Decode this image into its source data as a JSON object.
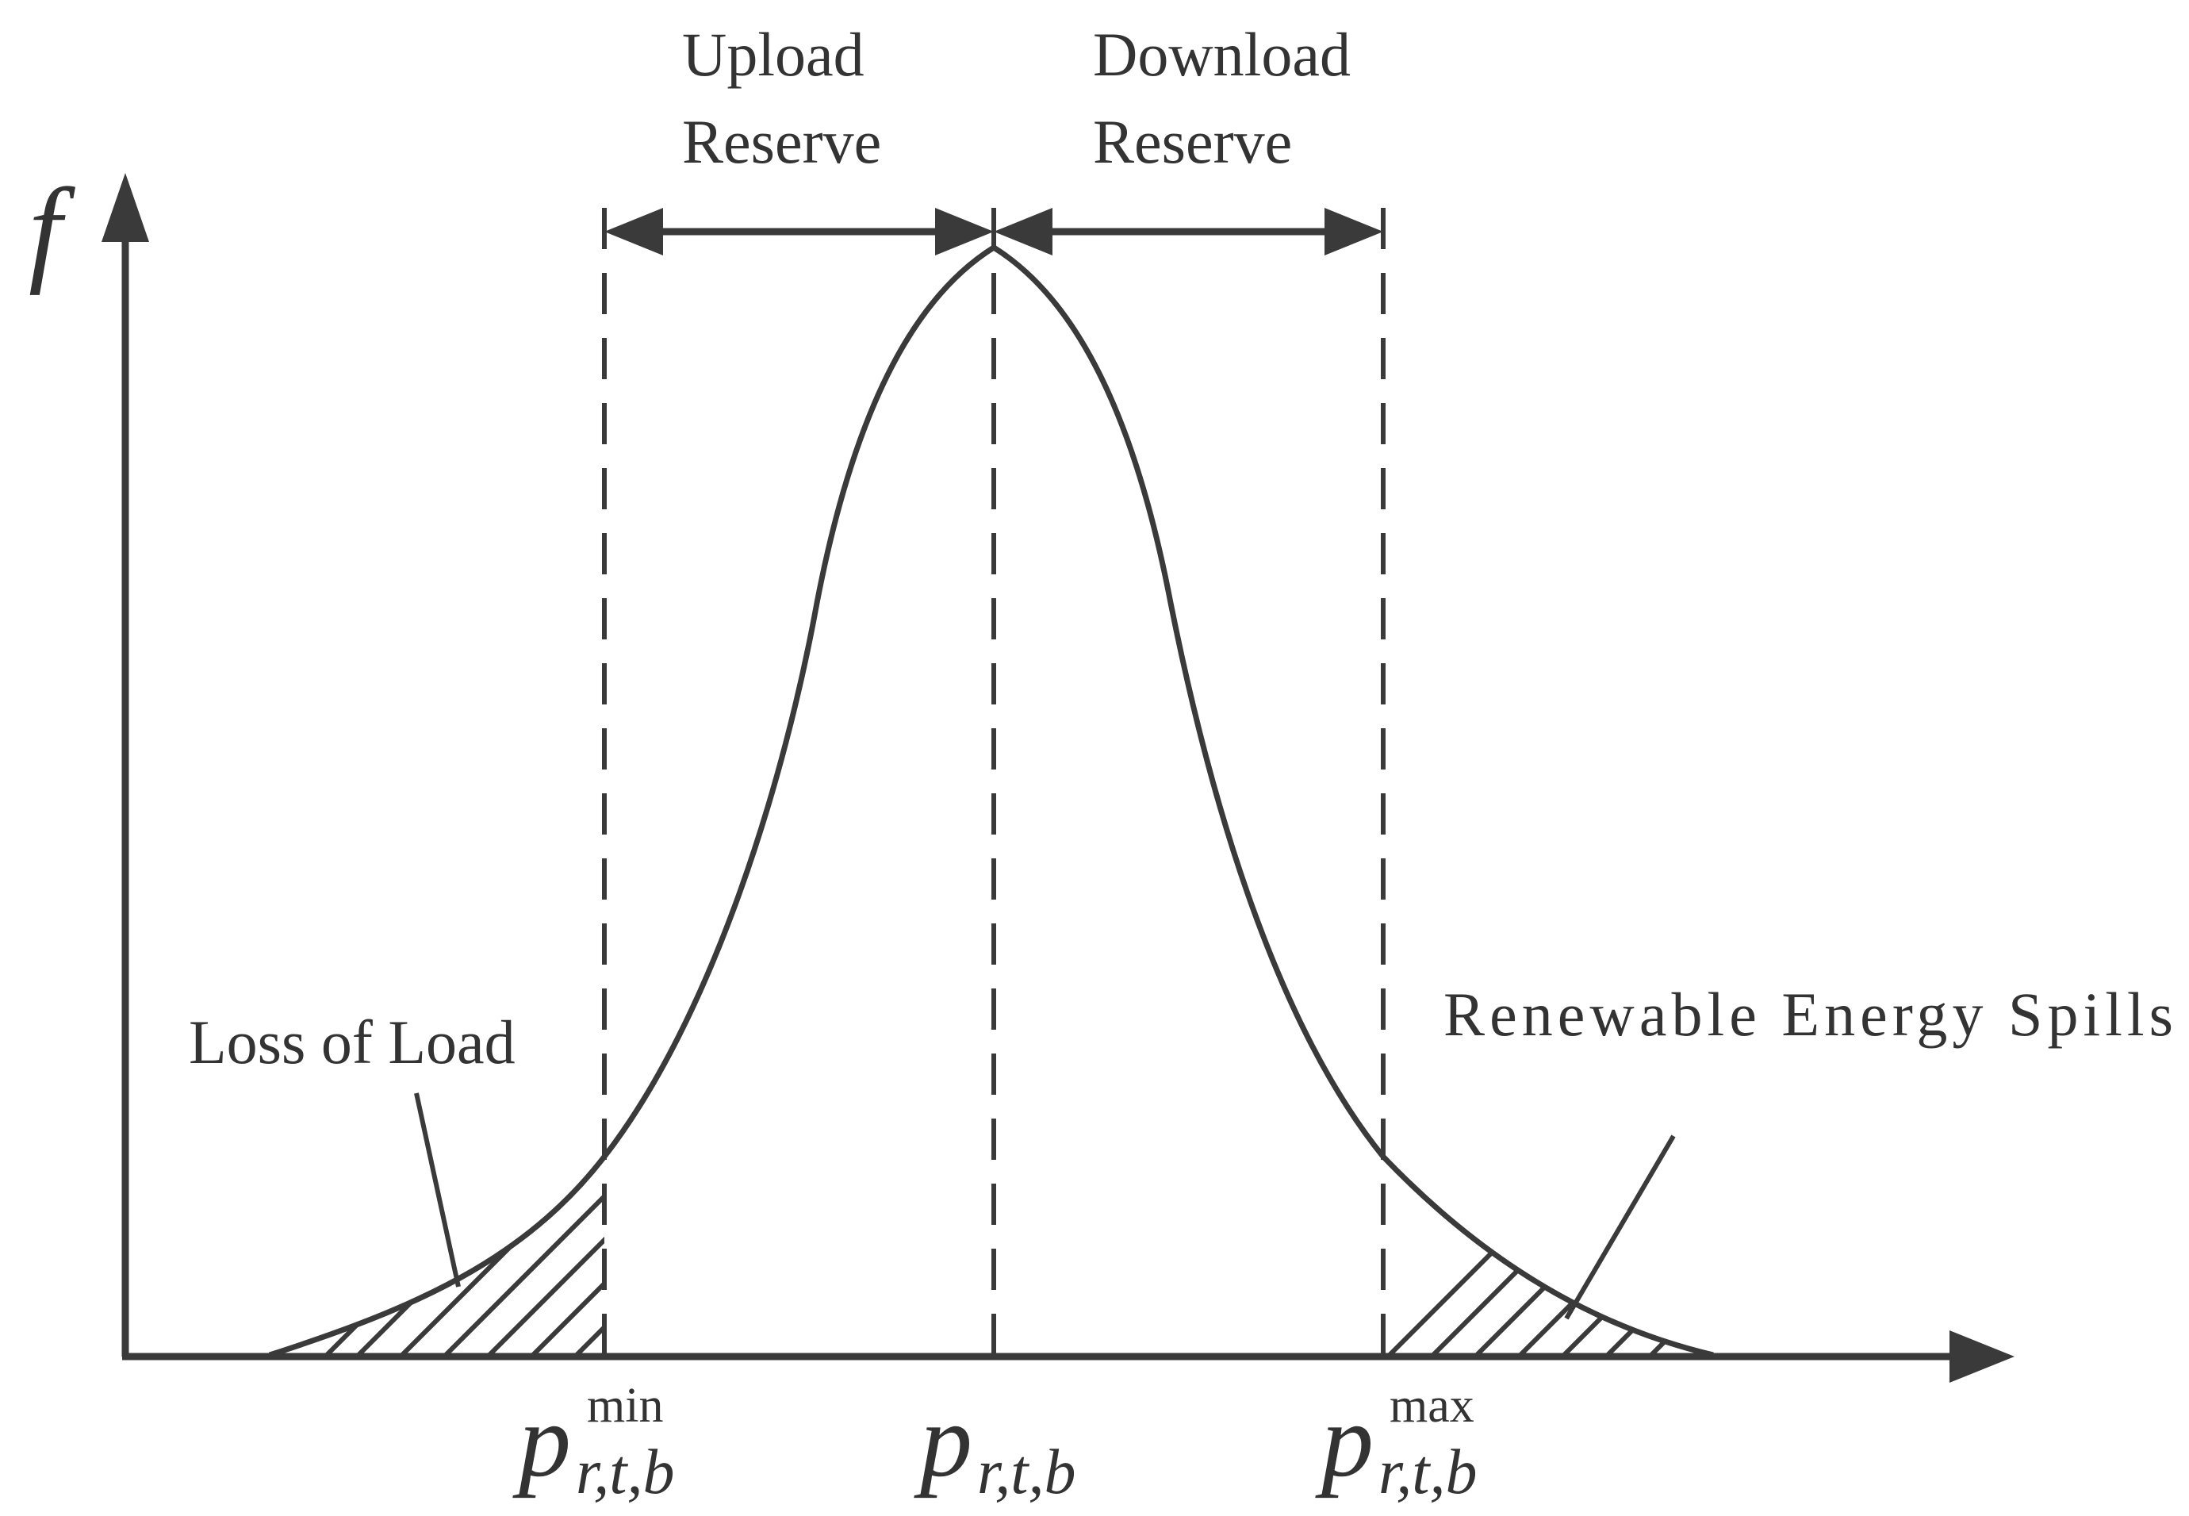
{
  "colors": {
    "ink": "#3a3a3a",
    "background": "#ffffff"
  },
  "axis": {
    "y_label": "f"
  },
  "annotations": {
    "upload_reserve_line1": "Upload",
    "upload_reserve_line2": "Reserve",
    "download_reserve_line1": "Download",
    "download_reserve_line2": "Reserve",
    "loss_of_load": "Loss of Load",
    "renewable_spills": "Renewable Energy Spills"
  },
  "tick_labels": {
    "pmin": {
      "base": "p",
      "subscript": "r,t,b",
      "superscript": "min"
    },
    "pcenter": {
      "base": "p",
      "subscript": "r,t,b"
    },
    "pmax": {
      "base": "p",
      "subscript": "r,t,b",
      "superscript": "max"
    }
  }
}
